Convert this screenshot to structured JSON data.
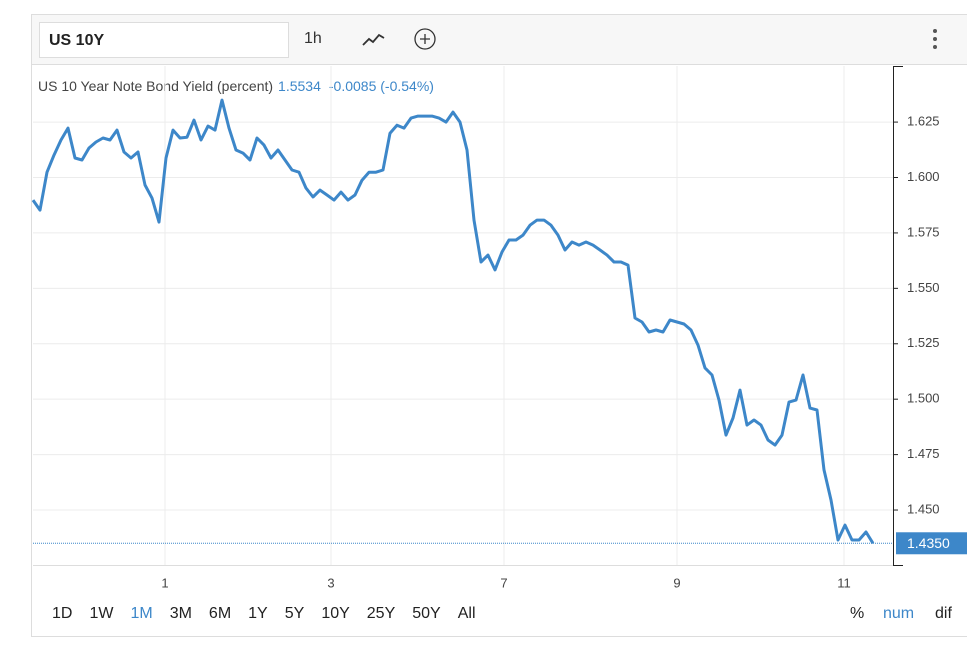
{
  "toolbar": {
    "symbol": "US 10Y",
    "interval": "1h"
  },
  "chart_data": {
    "type": "line",
    "legend_title": "US 10 Year Note Bond Yield (percent)",
    "legend_value": 1.5534,
    "legend_change": "-0.0085 (-0.54%)",
    "color": "#3d87c9",
    "grid": true,
    "values": [
      1.5898,
      1.5853,
      1.6024,
      1.6101,
      1.6169,
      1.6223,
      1.6088,
      1.6079,
      1.6133,
      1.616,
      1.6178,
      1.6169,
      1.6214,
      1.6115,
      1.6088,
      1.6115,
      1.5966,
      1.5907,
      1.5799,
      1.6088,
      1.6214,
      1.6178,
      1.6182,
      1.6259,
      1.6169,
      1.6232,
      1.6214,
      1.6349,
      1.6223,
      1.6124,
      1.611,
      1.6079,
      1.6178,
      1.6146,
      1.6088,
      1.6124,
      1.6079,
      1.6034,
      1.6024,
      1.5952,
      1.5912,
      1.5943,
      1.5921,
      1.5898,
      1.5934,
      1.5898,
      1.5921,
      1.5988,
      1.6024,
      1.6024,
      1.6034,
      1.62,
      1.6236,
      1.6223,
      1.6268,
      1.6277,
      1.6277,
      1.6277,
      1.6268,
      1.625,
      1.6295,
      1.625,
      1.6124,
      1.5808,
      1.5619,
      1.565,
      1.5583,
      1.5664,
      1.5718,
      1.5718,
      1.574,
      1.5785,
      1.5808,
      1.5808,
      1.5785,
      1.574,
      1.5673,
      1.5709,
      1.5695,
      1.5709,
      1.5695,
      1.5673,
      1.565,
      1.5619,
      1.5619,
      1.5605,
      1.5366,
      1.5348,
      1.5303,
      1.5312,
      1.5303,
      1.5357,
      1.5348,
      1.5339,
      1.5312,
      1.5244,
      1.5141,
      1.5109,
      1.4996,
      1.4838,
      1.4915,
      1.5041,
      1.4883,
      1.4906,
      1.4883,
      1.4816,
      1.4793,
      1.4838,
      1.4987,
      1.4996,
      1.5109,
      1.496,
      1.4951,
      1.4681,
      1.4545,
      1.4365,
      1.4432,
      1.4365,
      1.4365,
      1.4401,
      1.435
    ],
    "xlim": [
      0,
      122.86
    ],
    "xticks": [
      {
        "value": 18.86,
        "label": "1"
      },
      {
        "value": 42.57,
        "label": "3"
      },
      {
        "value": 67.29,
        "label": "7"
      },
      {
        "value": 92,
        "label": "9"
      },
      {
        "value": 115.86,
        "label": "11"
      }
    ],
    "ylim": [
      1.4252,
      1.6503
    ],
    "yticks": [
      {
        "value": 1.45,
        "label": "1.450"
      },
      1.475,
      {
        "value": 1.5,
        "label": "1.500"
      },
      1.525,
      {
        "value": 1.55,
        "label": "1.550"
      },
      1.575,
      {
        "value": 1.6,
        "label": "1.600"
      },
      1.625
    ],
    "last_price": {
      "value": 1.435,
      "label": "1.4350"
    }
  },
  "range_buttons": [
    "1D",
    "1W",
    "1M",
    "3M",
    "6M",
    "1Y",
    "5Y",
    "10Y",
    "25Y",
    "50Y",
    "All"
  ],
  "range_selected": 2,
  "modes": [
    "%",
    "num",
    "dif"
  ],
  "mode_selected": 1
}
